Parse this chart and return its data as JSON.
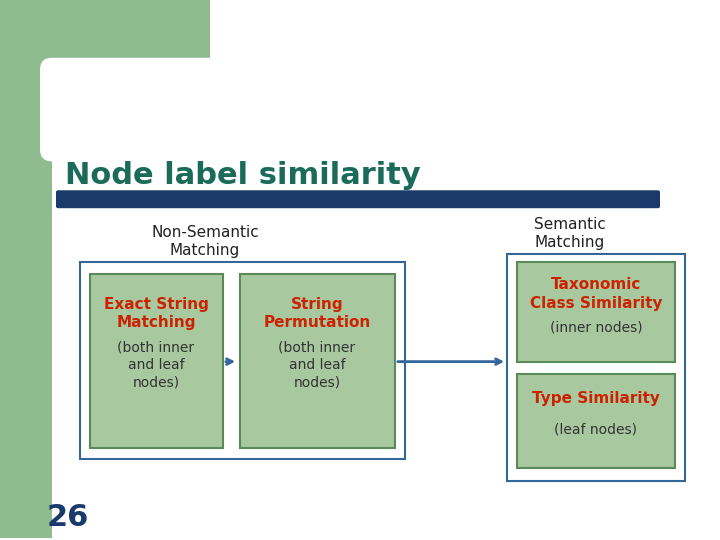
{
  "title": "Node label similarity",
  "title_color": "#1a6b5a",
  "title_fontsize": 22,
  "bg_color": "#ffffff",
  "green_sidebar_color": "#8fbc8f",
  "bar_color": "#1a3a6b",
  "number_label": "26",
  "number_color": "#1a3a6b",
  "non_semantic_label": "Non-Semantic\nMatching",
  "semantic_label": "Semantic\nMatching",
  "box1_title": "Exact String\nMatching",
  "box1_sub": "(both inner\nand leaf\nnodes)",
  "box2_title": "String\nPermutation",
  "box2_sub": "(both inner\nand leaf\nnodes)",
  "box3_title": "Taxonomic\nClass Similarity",
  "box3_sub": "(inner nodes)",
  "box4_title": "Type Similarity",
  "box4_sub": "(leaf nodes)",
  "box_title_color": "#cc2200",
  "box_sub_color": "#333333",
  "box_fill": "#a8c8a0",
  "box_edge": "#5a8a5a",
  "outer_box_fill": "#ffffff",
  "outer_box_edge": "#336699",
  "semantic_outer_fill": "#ffffff",
  "semantic_outer_edge": "#336699",
  "arrow_color": "#336699"
}
